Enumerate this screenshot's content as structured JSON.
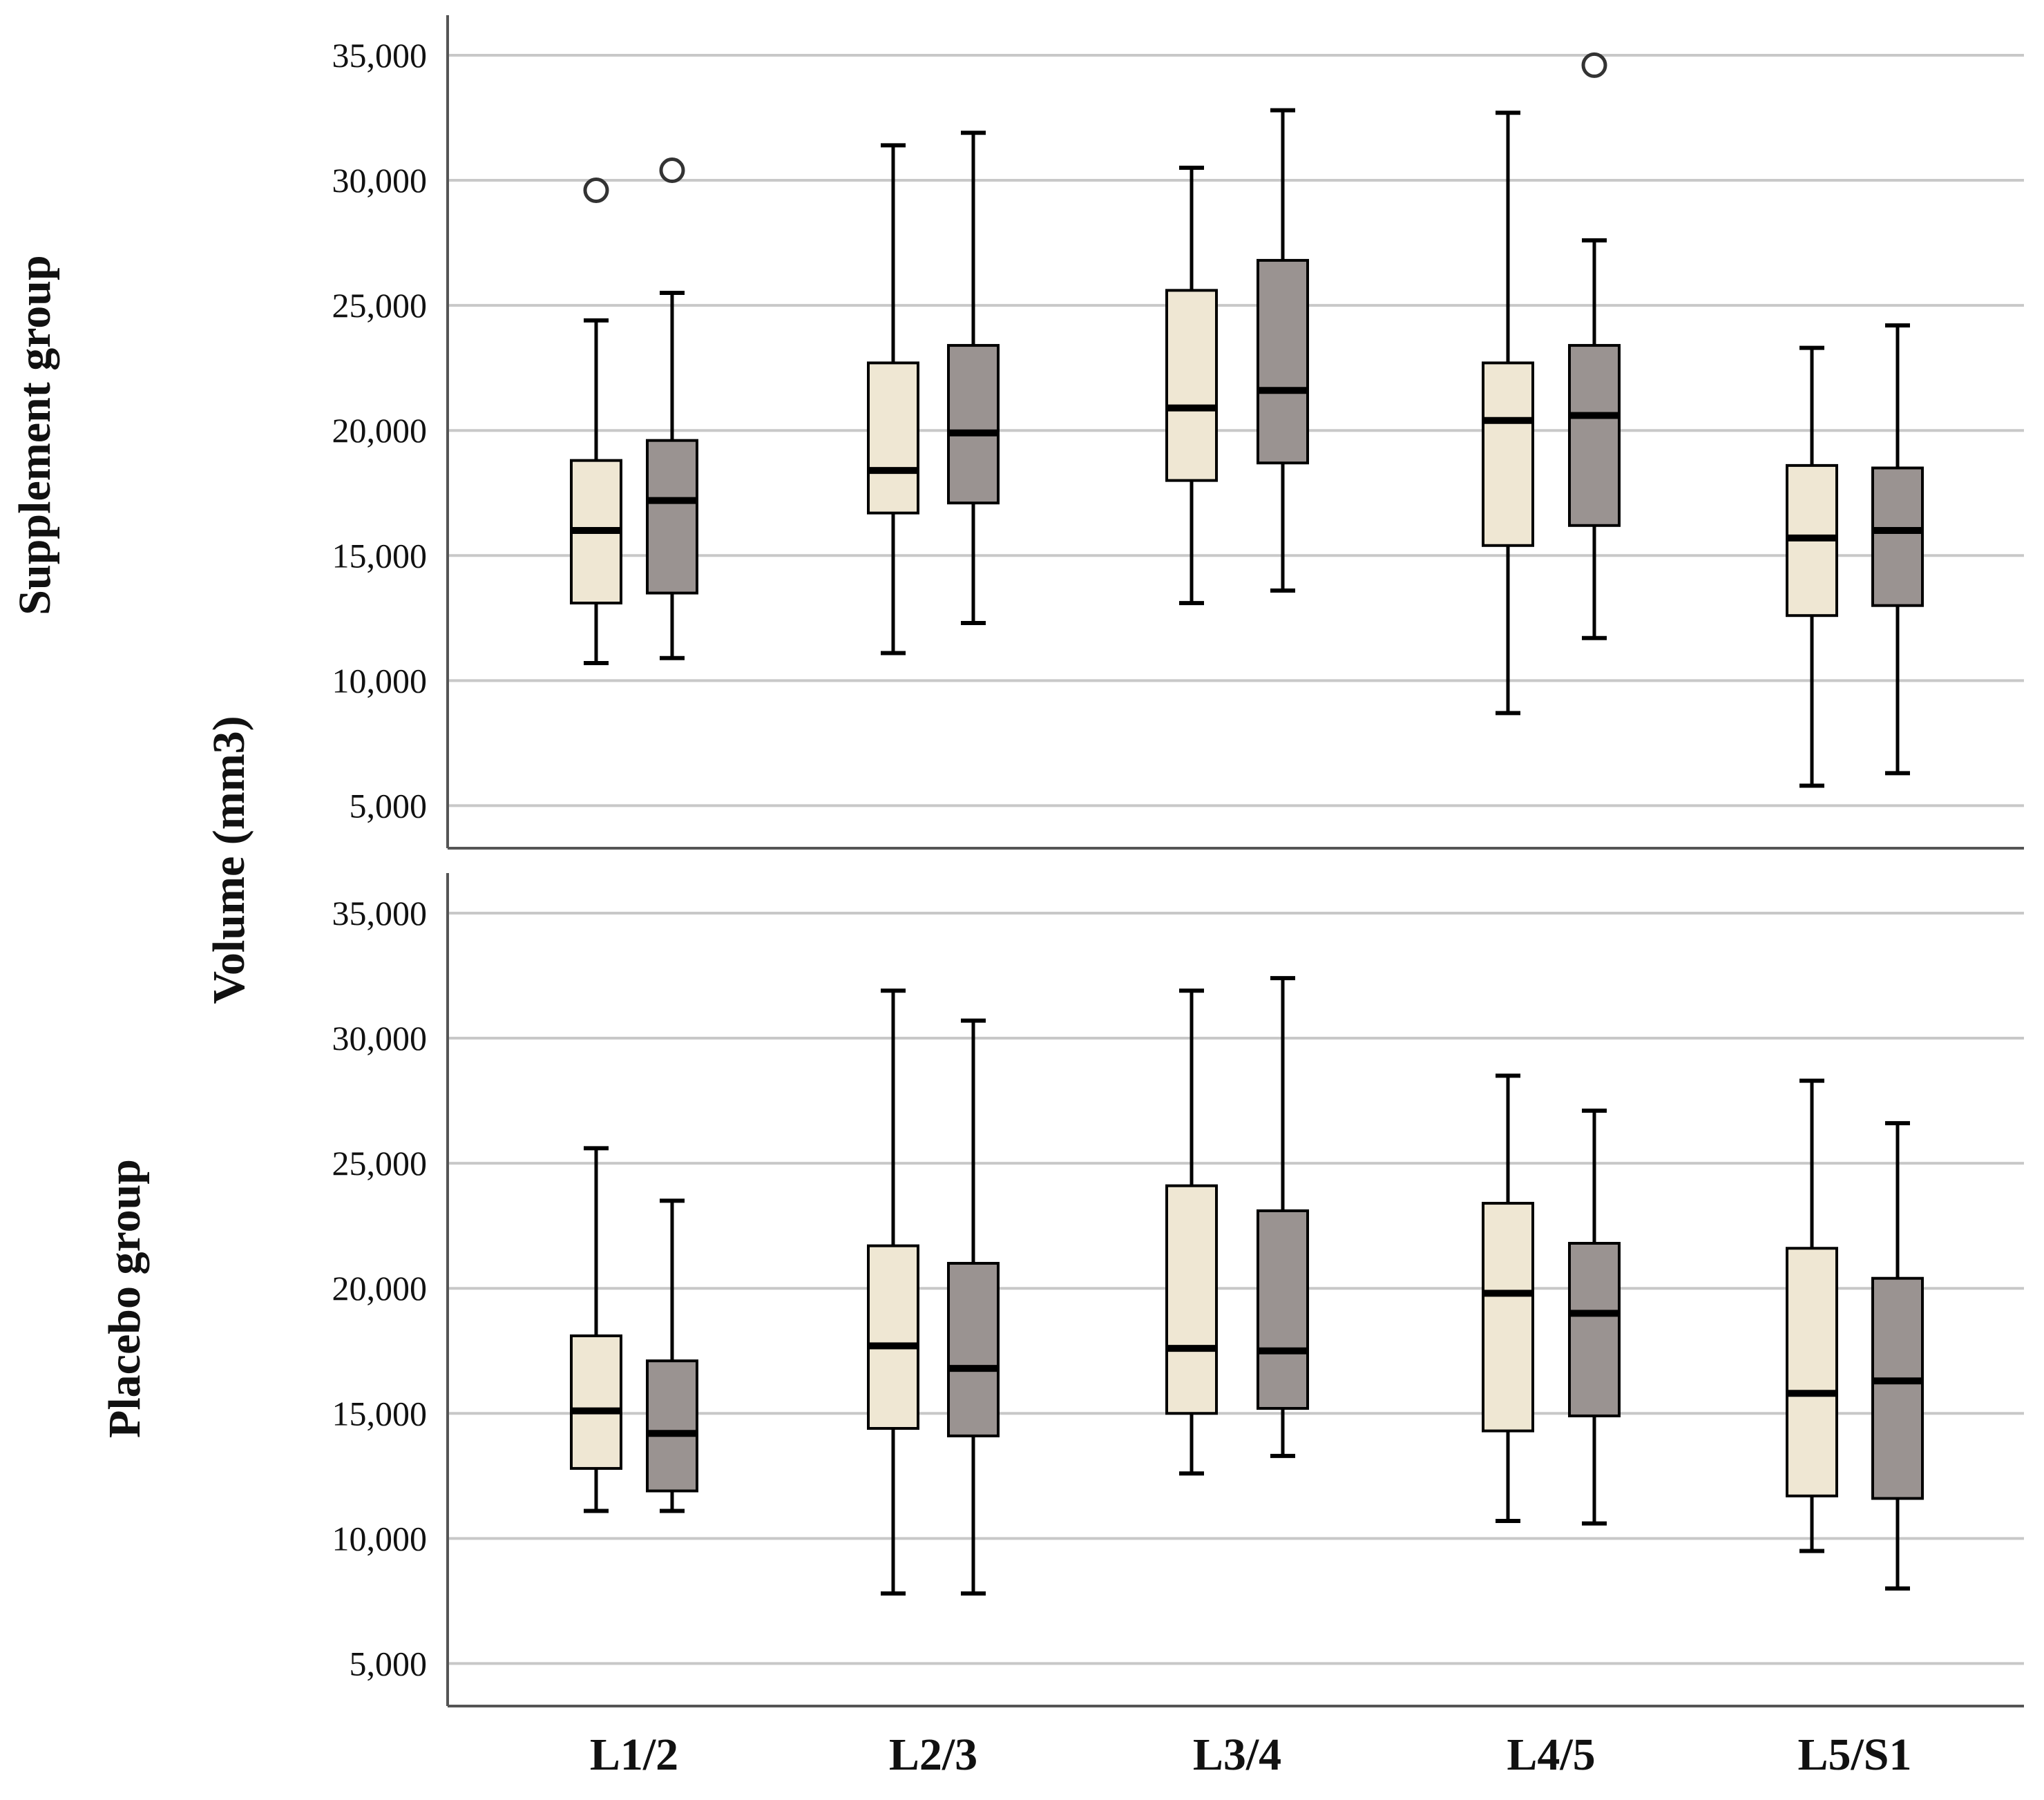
{
  "chart_data": {
    "type": "box",
    "ylabel": "Volume (mm3)",
    "ylim": [
      3300,
      36600
    ],
    "yticks": [
      5000,
      10000,
      15000,
      20000,
      25000,
      30000,
      35000
    ],
    "ytick_labels": [
      "5,000",
      "10,000",
      "15,000",
      "20,000",
      "25,000",
      "30,000",
      "35,000"
    ],
    "categories": [
      "L1/2",
      "L2/3",
      "L3/4",
      "L4/5",
      "L5/S1"
    ],
    "series_colors": [
      "#efe7d3",
      "#9a9391"
    ],
    "panels": [
      {
        "label": "Supplement group",
        "boxes": [
          [
            {
              "min": 10700,
              "q1": 13100,
              "median": 16000,
              "q3": 18800,
              "max": 24400,
              "outliers": [
                29600
              ]
            },
            {
              "min": 10900,
              "q1": 13500,
              "median": 17200,
              "q3": 19600,
              "max": 25500,
              "outliers": [
                30400
              ]
            }
          ],
          [
            {
              "min": 11100,
              "q1": 16700,
              "median": 18400,
              "q3": 22700,
              "max": 31400,
              "outliers": []
            },
            {
              "min": 12300,
              "q1": 17100,
              "median": 19900,
              "q3": 23400,
              "max": 31900,
              "outliers": []
            }
          ],
          [
            {
              "min": 13100,
              "q1": 18000,
              "median": 20900,
              "q3": 25600,
              "max": 30500,
              "outliers": []
            },
            {
              "min": 13600,
              "q1": 18700,
              "median": 21600,
              "q3": 26800,
              "max": 32800,
              "outliers": []
            }
          ],
          [
            {
              "min": 8700,
              "q1": 15400,
              "median": 20400,
              "q3": 22700,
              "max": 32700,
              "outliers": []
            },
            {
              "min": 11700,
              "q1": 16200,
              "median": 20600,
              "q3": 23400,
              "max": 27600,
              "outliers": [
                34600
              ]
            }
          ],
          [
            {
              "min": 5800,
              "q1": 12600,
              "median": 15700,
              "q3": 18600,
              "max": 23300,
              "outliers": []
            },
            {
              "min": 6300,
              "q1": 13000,
              "median": 16000,
              "q3": 18500,
              "max": 24200,
              "outliers": []
            }
          ]
        ]
      },
      {
        "label": "Placebo group",
        "boxes": [
          [
            {
              "min": 11100,
              "q1": 12800,
              "median": 15100,
              "q3": 18100,
              "max": 25600,
              "outliers": []
            },
            {
              "min": 11100,
              "q1": 11900,
              "median": 14200,
              "q3": 17100,
              "max": 23500,
              "outliers": []
            }
          ],
          [
            {
              "min": 7800,
              "q1": 14400,
              "median": 17700,
              "q3": 21700,
              "max": 31900,
              "outliers": []
            },
            {
              "min": 7800,
              "q1": 14100,
              "median": 16800,
              "q3": 21000,
              "max": 30700,
              "outliers": []
            }
          ],
          [
            {
              "min": 12600,
              "q1": 15000,
              "median": 17600,
              "q3": 24100,
              "max": 31900,
              "outliers": []
            },
            {
              "min": 13300,
              "q1": 15200,
              "median": 17500,
              "q3": 23100,
              "max": 32400,
              "outliers": []
            }
          ],
          [
            {
              "min": 10700,
              "q1": 14300,
              "median": 19800,
              "q3": 23400,
              "max": 28500,
              "outliers": []
            },
            {
              "min": 10600,
              "q1": 14900,
              "median": 19000,
              "q3": 21800,
              "max": 27100,
              "outliers": []
            }
          ],
          [
            {
              "min": 9500,
              "q1": 11700,
              "median": 15800,
              "q3": 21600,
              "max": 28300,
              "outliers": []
            },
            {
              "min": 8000,
              "q1": 11600,
              "median": 16300,
              "q3": 20400,
              "max": 26600,
              "outliers": []
            }
          ]
        ]
      }
    ]
  }
}
